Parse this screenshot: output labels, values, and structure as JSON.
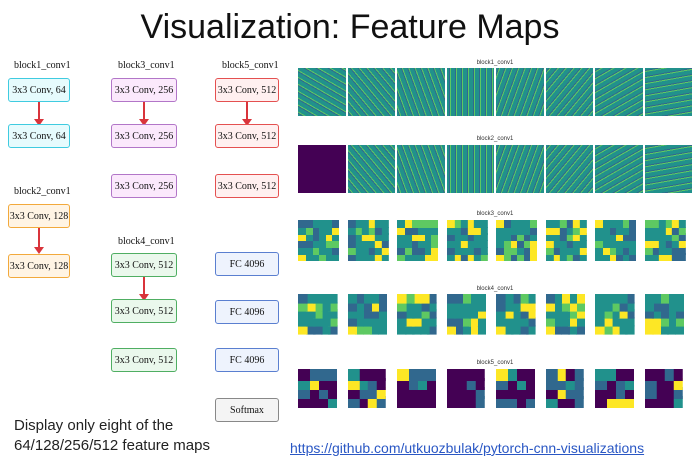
{
  "title": "Visualization: Feature Maps",
  "blocks": {
    "block1": {
      "label": "block1_conv1",
      "boxes": [
        "3x3 Conv, 64",
        "3x3 Conv, 64"
      ]
    },
    "block2": {
      "label": "block2_conv1",
      "boxes": [
        "3x3 Conv, 128",
        "3x3 Conv, 128"
      ]
    },
    "block3": {
      "label": "block3_conv1",
      "boxes": [
        "3x3 Conv, 256",
        "3x3 Conv, 256",
        "3x3 Conv, 256"
      ]
    },
    "block4": {
      "label": "block4_conv1",
      "boxes": [
        "3x3 Conv, 512",
        "3x3 Conv, 512",
        "3x3 Conv, 512"
      ]
    },
    "block5": {
      "label": "block5_conv1",
      "boxes": [
        "3x3 Conv, 512",
        "3x3 Conv, 512",
        "3x3 Conv, 512"
      ]
    },
    "fc": [
      "FC 4096",
      "FC 4096",
      "FC 4096"
    ],
    "softmax": "Softmax"
  },
  "feature_maps": [
    {
      "label": "block1_conv1"
    },
    {
      "label": "block2_conv1"
    },
    {
      "label": "block3_conv1"
    },
    {
      "label": "block4_conv1"
    },
    {
      "label": "block5_conv1"
    }
  ],
  "colors": {
    "viridis_dark": "#440154",
    "viridis_blue": "#31688e",
    "viridis_teal": "#21918c",
    "viridis_green": "#5ec962",
    "viridis_yellow": "#fde725"
  },
  "note": {
    "line1": "Display only eight of the",
    "line2": "64/128/256/512 feature maps"
  },
  "link": "https://github.com/utkuozbulak/pytorch-cnn-visualizations"
}
